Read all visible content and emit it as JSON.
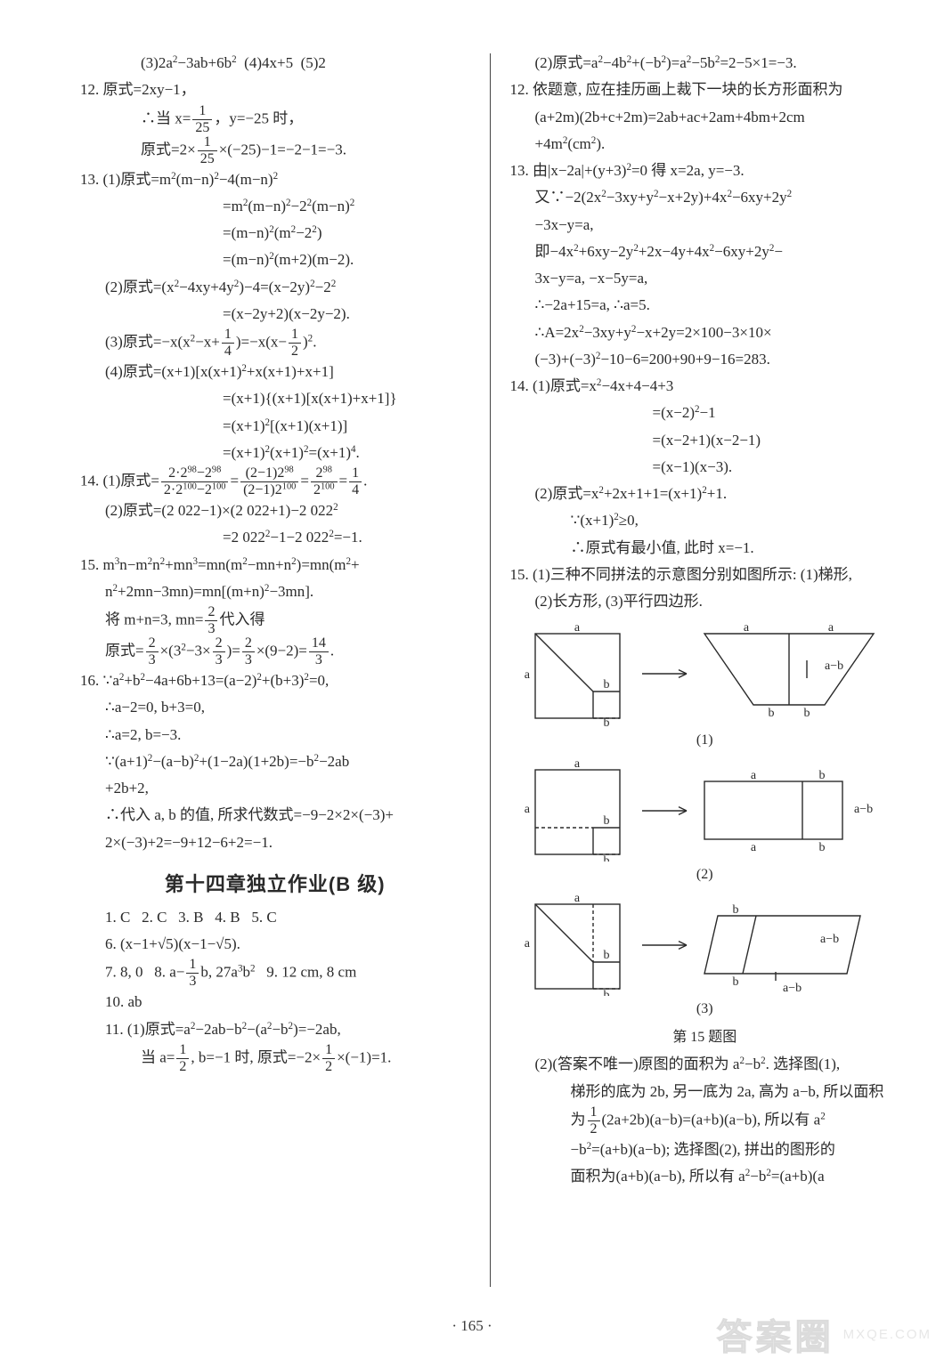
{
  "left": {
    "lines": [
      {
        "cls": "i2",
        "html": "(3)2a<sup>2</sup>−3ab+6b<sup>2</sup>&nbsp;&nbsp;(4)4x+5&nbsp;&nbsp;(5)2"
      },
      {
        "cls": "",
        "html": "12. 原式=2xy−1，"
      },
      {
        "cls": "i2",
        "html": "∴当 x=<span class='frac'><span class='n'>1</span><span class='d'>25</span></span>，y=−25 时，"
      },
      {
        "cls": "i2",
        "html": "原式=2×<span class='frac'><span class='n'>1</span><span class='d'>25</span></span>×(−25)−1=−2−1=−3."
      },
      {
        "cls": "",
        "html": "13. (1)原式=m<sup>2</sup>(m−n)<sup>2</sup>−4(m−n)<sup>2</sup>"
      },
      {
        "cls": "i4",
        "html": "=m<sup>2</sup>(m−n)<sup>2</sup>−2<sup>2</sup>(m−n)<sup>2</sup>"
      },
      {
        "cls": "i4",
        "html": "=(m−n)<sup>2</sup>(m<sup>2</sup>−2<sup>2</sup>)"
      },
      {
        "cls": "i4",
        "html": "=(m−n)<sup>2</sup>(m+2)(m−2)."
      },
      {
        "cls": "i1",
        "html": "(2)原式=(x<sup>2</sup>−4xy+4y<sup>2</sup>)−4=(x−2y)<sup>2</sup>−2<sup>2</sup>"
      },
      {
        "cls": "i4",
        "html": "=(x−2y+2)(x−2y−2)."
      },
      {
        "cls": "i1",
        "html": "(3)原式=−x(x<sup>2</sup>−x+<span class='frac'><span class='n'>1</span><span class='d'>4</span></span>)=−x(x−<span class='frac'><span class='n'>1</span><span class='d'>2</span></span>)<sup>2</sup>."
      },
      {
        "cls": "i1",
        "html": "(4)原式=(x+1)[x(x+1)<sup>2</sup>+x(x+1)+x+1]"
      },
      {
        "cls": "i4",
        "html": "=(x+1){(x+1)[x(x+1)+x+1]}"
      },
      {
        "cls": "i4",
        "html": "=(x+1)<sup>2</sup>[(x+1)(x+1)]"
      },
      {
        "cls": "i4",
        "html": "=(x+1)<sup>2</sup>(x+1)<sup>2</sup>=(x+1)<sup>4</sup>."
      },
      {
        "cls": "",
        "html": "14. (1)原式=<span class='frac'><span class='n'>2·2<sup>98</sup>−2<sup>98</sup></span><span class='d'>2·2<sup>100</sup>−2<sup>100</sup></span></span>=<span class='frac'><span class='n'>(2−1)2<sup>98</sup></span><span class='d'>(2−1)2<sup>100</sup></span></span>=<span class='frac'><span class='n'>2<sup>98</sup></span><span class='d'>2<sup>100</sup></span></span>=<span class='frac'><span class='n'>1</span><span class='d'>4</span></span>."
      },
      {
        "cls": "i1",
        "html": "(2)原式=(2 022−1)×(2 022+1)−2 022<sup>2</sup>"
      },
      {
        "cls": "i4",
        "html": "=2 022<sup>2</sup>−1−2 022<sup>2</sup>=−1."
      },
      {
        "cls": "",
        "html": "15. m<sup>3</sup>n−m<sup>2</sup>n<sup>2</sup>+mn<sup>3</sup>=mn(m<sup>2</sup>−mn+n<sup>2</sup>)=mn(m<sup>2</sup>+"
      },
      {
        "cls": "i1",
        "html": "n<sup>2</sup>+2mn−3mn)=mn[(m+n)<sup>2</sup>−3mn]."
      },
      {
        "cls": "i1",
        "html": "将 m+n=3, mn=<span class='frac'><span class='n'>2</span><span class='d'>3</span></span>代入得"
      },
      {
        "cls": "i1",
        "html": "原式=<span class='frac'><span class='n'>2</span><span class='d'>3</span></span>×(3<sup>2</sup>−3×<span class='frac'><span class='n'>2</span><span class='d'>3</span></span>)=<span class='frac'><span class='n'>2</span><span class='d'>3</span></span>×(9−2)=<span class='frac'><span class='n'>14</span><span class='d'>3</span></span>."
      },
      {
        "cls": "",
        "html": "16. ∵a<sup>2</sup>+b<sup>2</sup>−4a+6b+13=(a−2)<sup>2</sup>+(b+3)<sup>2</sup>=0,"
      },
      {
        "cls": "i1",
        "html": "∴a−2=0, b+3=0,"
      },
      {
        "cls": "i1",
        "html": "∴a=2, b=−3."
      },
      {
        "cls": "i1",
        "html": "∵(a+1)<sup>2</sup>−(a−b)<sup>2</sup>+(1−2a)(1+2b)=−b<sup>2</sup>−2ab"
      },
      {
        "cls": "i1",
        "html": "+2b+2,"
      },
      {
        "cls": "i1",
        "html": "∴代入 a, b 的值, 所求代数式=−9−2×2×(−3)+"
      },
      {
        "cls": "i1",
        "html": "2×(−3)+2=−9+12−6+2=−1."
      }
    ],
    "section_title": "第十四章独立作业(B 级)",
    "lines2": [
      {
        "cls": "i1",
        "html": "1. C&nbsp;&nbsp;&nbsp;2. C&nbsp;&nbsp;&nbsp;3. B&nbsp;&nbsp;&nbsp;4. B&nbsp;&nbsp;&nbsp;5. C"
      },
      {
        "cls": "i1",
        "html": "6. (x−1+√5)(x−1−√5)."
      },
      {
        "cls": "i1",
        "html": "7. 8, 0&nbsp;&nbsp;&nbsp;8. a−<span class='frac'><span class='n'>1</span><span class='d'>3</span></span>b, 27a<sup>3</sup>b<sup>2</sup>&nbsp;&nbsp;&nbsp;9. 12 cm, 8 cm"
      },
      {
        "cls": "i1",
        "html": "10. ab"
      },
      {
        "cls": "i1",
        "html": "11. (1)原式=a<sup>2</sup>−2ab−b<sup>2</sup>−(a<sup>2</sup>−b<sup>2</sup>)=−2ab,"
      },
      {
        "cls": "i2",
        "html": "当 a=<span class='frac'><span class='n'>1</span><span class='d'>2</span></span>, b=−1 时, 原式=−2×<span class='frac'><span class='n'>1</span><span class='d'>2</span></span>×(−1)=1."
      }
    ]
  },
  "right": {
    "lines": [
      {
        "cls": "i1",
        "html": "(2)原式=a<sup>2</sup>−4b<sup>2</sup>+(−b<sup>2</sup>)=a<sup>2</sup>−5b<sup>2</sup>=2−5×1=−3."
      },
      {
        "cls": "",
        "html": "12. 依题意, 应在挂历画上裁下一块的长方形面积为"
      },
      {
        "cls": "i1",
        "html": "(a+2m)(2b+c+2m)=2ab+ac+2am+4bm+2cm"
      },
      {
        "cls": "i1",
        "html": "+4m<sup>2</sup>(cm<sup>2</sup>)."
      },
      {
        "cls": "",
        "html": "13. 由|x−2a|+(y+3)<sup>2</sup>=0 得 x=2a, y=−3."
      },
      {
        "cls": "i1",
        "html": "又∵−2(2x<sup>2</sup>−3xy+y<sup>2</sup>−x+2y)+4x<sup>2</sup>−6xy+2y<sup>2</sup>"
      },
      {
        "cls": "i1",
        "html": "−3x−y=a,"
      },
      {
        "cls": "i1",
        "html": "即−4x<sup>2</sup>+6xy−2y<sup>2</sup>+2x−4y+4x<sup>2</sup>−6xy+2y<sup>2</sup>−"
      },
      {
        "cls": "i1",
        "html": "3x−y=a, −x−5y=a,"
      },
      {
        "cls": "i1",
        "html": "∴−2a+15=a, ∴a=5."
      },
      {
        "cls": "i1",
        "html": "∴A=2x<sup>2</sup>−3xy+y<sup>2</sup>−x+2y=2×100−3×10×"
      },
      {
        "cls": "i1",
        "html": "(−3)+(−3)<sup>2</sup>−10−6=200+90+9−16=283."
      },
      {
        "cls": "",
        "html": "14. (1)原式=x<sup>2</sup>−4x+4−4+3"
      },
      {
        "cls": "i4",
        "html": "=(x−2)<sup>2</sup>−1"
      },
      {
        "cls": "i4",
        "html": "=(x−2+1)(x−2−1)"
      },
      {
        "cls": "i4",
        "html": "=(x−1)(x−3)."
      },
      {
        "cls": "i1",
        "html": "(2)原式=x<sup>2</sup>+2x+1+1=(x+1)<sup>2</sup>+1."
      },
      {
        "cls": "i2",
        "html": "∵(x+1)<sup>2</sup>≥0,"
      },
      {
        "cls": "i2",
        "html": "∴原式有最小值, 此时 x=−1."
      },
      {
        "cls": "",
        "html": "15. (1)三种不同拼法的示意图分别如图所示: (1)梯形,"
      },
      {
        "cls": "i1",
        "html": "(2)长方形, (3)平行四边形."
      }
    ],
    "figcaps": [
      "(1)",
      "(2)",
      "(3)",
      "第 15 题图"
    ],
    "lines2": [
      {
        "cls": "i1",
        "html": "(2)(答案不唯一)原图的面积为 a<sup>2</sup>−b<sup>2</sup>. 选择图(1),"
      },
      {
        "cls": "i2",
        "html": "梯形的底为 2b, 另一底为 2a, 高为 a−b, 所以面积"
      },
      {
        "cls": "i2",
        "html": "为<span class='frac'><span class='n'>1</span><span class='d'>2</span></span>(2a+2b)(a−b)=(a+b)(a−b), 所以有 a<sup>2</sup>"
      },
      {
        "cls": "i2",
        "html": "−b<sup>2</sup>=(a+b)(a−b); 选择图(2), 拼出的图形的"
      },
      {
        "cls": "i2",
        "html": "面积为(a+b)(a−b), 所以有 a<sup>2</sup>−b<sup>2</sup>=(a+b)(a"
      }
    ]
  },
  "pagenum": "· 165 ·",
  "watermark": {
    "logo": "答案圈",
    "site": "MXQE.COM"
  },
  "fig": {
    "stroke": "#2a2a2a",
    "dash": "4 3",
    "label_fontsize": 14,
    "label_font": "Times New Roman, SimSun, serif"
  }
}
